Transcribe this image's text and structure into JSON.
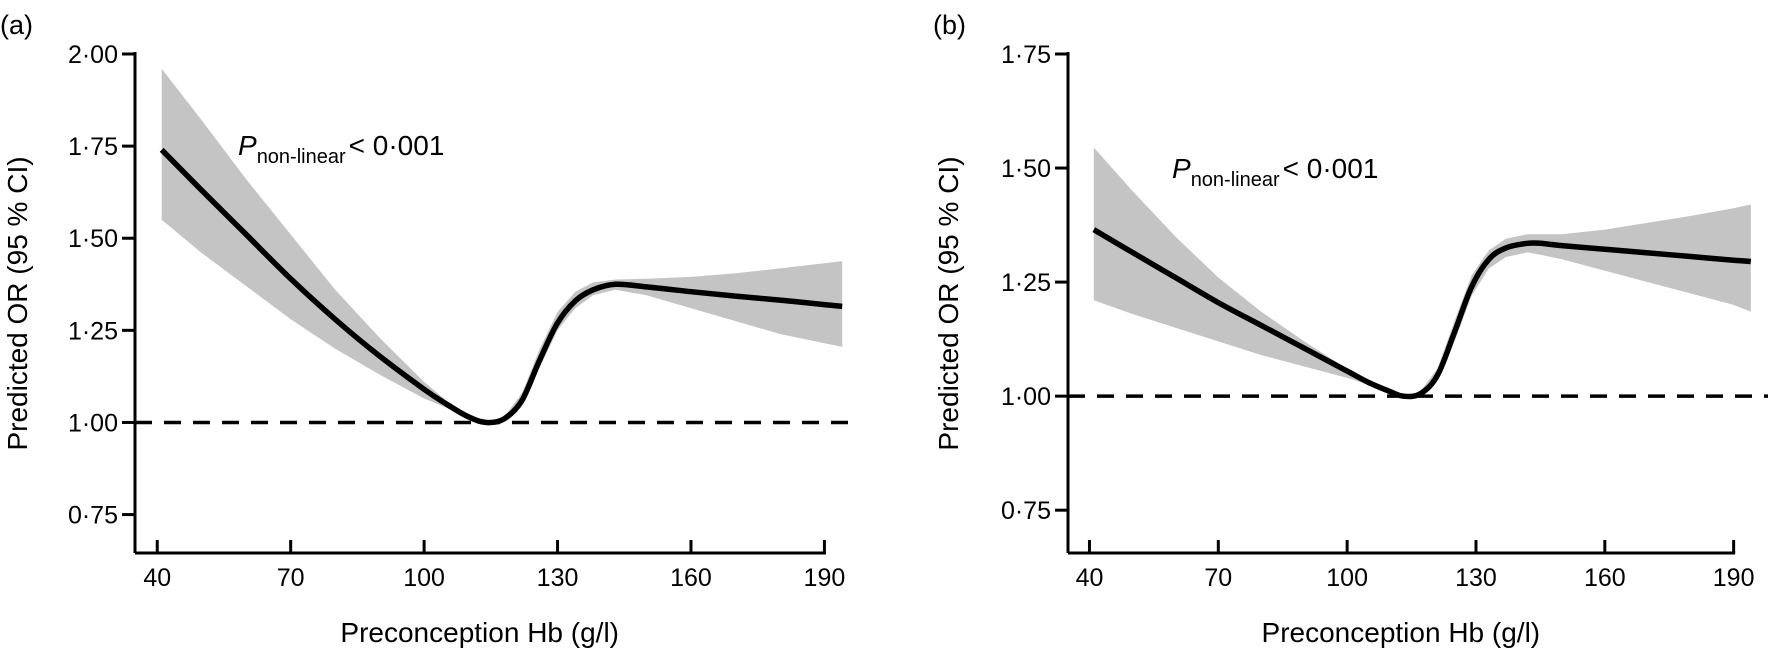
{
  "chart_data": [
    {
      "type": "line",
      "panel_label": "(a)",
      "xlabel": "Preconception Hb (g/l)",
      "ylabel": "Predicted OR (95 % CI)",
      "xlim": [
        35,
        198
      ],
      "ylim": [
        0.7,
        2.0
      ],
      "xticks": [
        40,
        70,
        100,
        130,
        160,
        190
      ],
      "xtick_labels": [
        "40",
        "70",
        "100",
        "130",
        "160",
        "190"
      ],
      "yticks": [
        0.75,
        1.0,
        1.25,
        1.5,
        1.75,
        2.0
      ],
      "ytick_labels": [
        "0·75",
        "1·00",
        "1·25",
        "1·50",
        "1·75",
        "2·00"
      ],
      "reference_line": {
        "y": 1.0,
        "style": "dashed"
      },
      "annotation": {
        "italic": "P",
        "subscript": "non-linear",
        "rest": "< 0·001"
      },
      "series": [
        {
          "name": "Predicted OR",
          "x": [
            41,
            50,
            60,
            70,
            80,
            90,
            100,
            105,
            110,
            114,
            118,
            122,
            126,
            130,
            134,
            138,
            143,
            150,
            160,
            170,
            180,
            190,
            194
          ],
          "y": [
            1.74,
            1.63,
            1.51,
            1.39,
            1.28,
            1.18,
            1.09,
            1.05,
            1.015,
            1.0,
            1.01,
            1.06,
            1.17,
            1.27,
            1.33,
            1.36,
            1.375,
            1.368,
            1.355,
            1.343,
            1.332,
            1.32,
            1.315
          ]
        },
        {
          "name": "95% CI upper",
          "x": [
            41,
            50,
            60,
            70,
            80,
            90,
            100,
            105,
            110,
            114,
            118,
            122,
            126,
            130,
            134,
            138,
            143,
            150,
            160,
            170,
            180,
            190,
            194
          ],
          "y": [
            1.96,
            1.82,
            1.66,
            1.51,
            1.36,
            1.23,
            1.11,
            1.06,
            1.02,
            1.0,
            1.015,
            1.08,
            1.2,
            1.3,
            1.355,
            1.38,
            1.388,
            1.39,
            1.395,
            1.405,
            1.418,
            1.432,
            1.438
          ]
        },
        {
          "name": "95% CI lower",
          "x": [
            41,
            50,
            60,
            70,
            80,
            90,
            100,
            105,
            110,
            114,
            118,
            122,
            126,
            130,
            134,
            138,
            143,
            150,
            160,
            170,
            180,
            190,
            194
          ],
          "y": [
            1.55,
            1.46,
            1.37,
            1.28,
            1.2,
            1.13,
            1.065,
            1.04,
            1.01,
            1.0,
            1.005,
            1.045,
            1.15,
            1.25,
            1.31,
            1.345,
            1.36,
            1.345,
            1.31,
            1.275,
            1.24,
            1.215,
            1.205
          ]
        }
      ]
    },
    {
      "type": "line",
      "panel_label": "(b)",
      "xlabel": "Preconception Hb (g/l)",
      "ylabel": "Predicted OR (95 % CI)",
      "xlim": [
        35,
        198
      ],
      "ylim": [
        0.7,
        1.75
      ],
      "xticks": [
        40,
        70,
        100,
        130,
        160,
        190
      ],
      "xtick_labels": [
        "40",
        "70",
        "100",
        "130",
        "160",
        "190"
      ],
      "yticks": [
        0.75,
        1.0,
        1.25,
        1.5,
        1.75
      ],
      "ytick_labels": [
        "0·75",
        "1·00",
        "1·25",
        "1·50",
        "1·75"
      ],
      "reference_line": {
        "y": 1.0,
        "style": "dashed"
      },
      "annotation": {
        "italic": "P",
        "subscript": "non-linear",
        "rest": "< 0·001"
      },
      "series": [
        {
          "name": "Predicted OR",
          "x": [
            41,
            50,
            60,
            70,
            80,
            90,
            100,
            105,
            110,
            113,
            117,
            121,
            125,
            129,
            133,
            137,
            142,
            145,
            150,
            160,
            170,
            180,
            190,
            194
          ],
          "y": [
            1.365,
            1.315,
            1.26,
            1.205,
            1.155,
            1.105,
            1.055,
            1.03,
            1.01,
            1.0,
            1.005,
            1.045,
            1.14,
            1.24,
            1.3,
            1.325,
            1.335,
            1.335,
            1.33,
            1.322,
            1.314,
            1.306,
            1.298,
            1.295
          ]
        },
        {
          "name": "95% CI upper",
          "x": [
            41,
            50,
            60,
            70,
            80,
            90,
            100,
            105,
            110,
            113,
            117,
            121,
            125,
            129,
            133,
            137,
            142,
            145,
            150,
            160,
            170,
            180,
            190,
            194
          ],
          "y": [
            1.545,
            1.45,
            1.35,
            1.26,
            1.185,
            1.12,
            1.06,
            1.035,
            1.012,
            1.0,
            1.01,
            1.06,
            1.165,
            1.265,
            1.32,
            1.345,
            1.355,
            1.355,
            1.355,
            1.365,
            1.38,
            1.395,
            1.412,
            1.42
          ]
        },
        {
          "name": "95% CI lower",
          "x": [
            41,
            50,
            60,
            70,
            80,
            90,
            100,
            105,
            110,
            113,
            117,
            121,
            125,
            129,
            133,
            137,
            142,
            145,
            150,
            160,
            170,
            180,
            190,
            194
          ],
          "y": [
            1.21,
            1.18,
            1.15,
            1.12,
            1.09,
            1.065,
            1.04,
            1.025,
            1.007,
            1.0,
            1.0,
            1.035,
            1.12,
            1.22,
            1.28,
            1.305,
            1.315,
            1.31,
            1.3,
            1.275,
            1.25,
            1.225,
            1.2,
            1.185
          ]
        }
      ]
    }
  ]
}
